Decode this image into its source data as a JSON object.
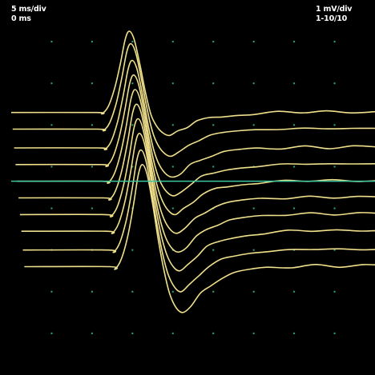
{
  "readouts": {
    "timebase": "5 ms/div",
    "time_offset": "0 ms",
    "sensitivity": "1 mV/div",
    "trace_range": "1-10/10"
  },
  "colors": {
    "background": "#000000",
    "trace": "#f0e08c",
    "baseline_marker": "#3cc8a0",
    "grid_dot": "#2fa77a",
    "readout_text": "#ffffff"
  },
  "chart_data": {
    "type": "line",
    "title": "",
    "xlabel": "",
    "ylabel": "",
    "x_unit": "ms",
    "y_unit": "mV",
    "x_per_div": 5,
    "y_per_div": 1,
    "xlim": [
      0,
      45
    ],
    "ylim": [
      -9,
      0
    ],
    "grid": "dots",
    "legend": "none",
    "baseline_marker_level": -4.35,
    "series": [
      {
        "offset": -2.7,
        "peak": 1.95,
        "trough": -0.55
      },
      {
        "offset": -3.1,
        "peak": 2.05,
        "trough": -0.65
      },
      {
        "offset": -3.55,
        "peak": 2.1,
        "trough": -0.7
      },
      {
        "offset": -3.95,
        "peak": 2.15,
        "trough": -0.75
      },
      {
        "offset": -4.35,
        "peak": 2.2,
        "trough": -0.8
      },
      {
        "offset": -4.75,
        "peak": 2.25,
        "trough": -0.85
      },
      {
        "offset": -5.15,
        "peak": 2.3,
        "trough": -0.9
      },
      {
        "offset": -5.55,
        "peak": 2.35,
        "trough": -0.95
      },
      {
        "offset": -6.0,
        "peak": 2.4,
        "trough": -1.0
      },
      {
        "offset": -6.4,
        "peak": 2.45,
        "trough": -1.1
      }
    ]
  }
}
